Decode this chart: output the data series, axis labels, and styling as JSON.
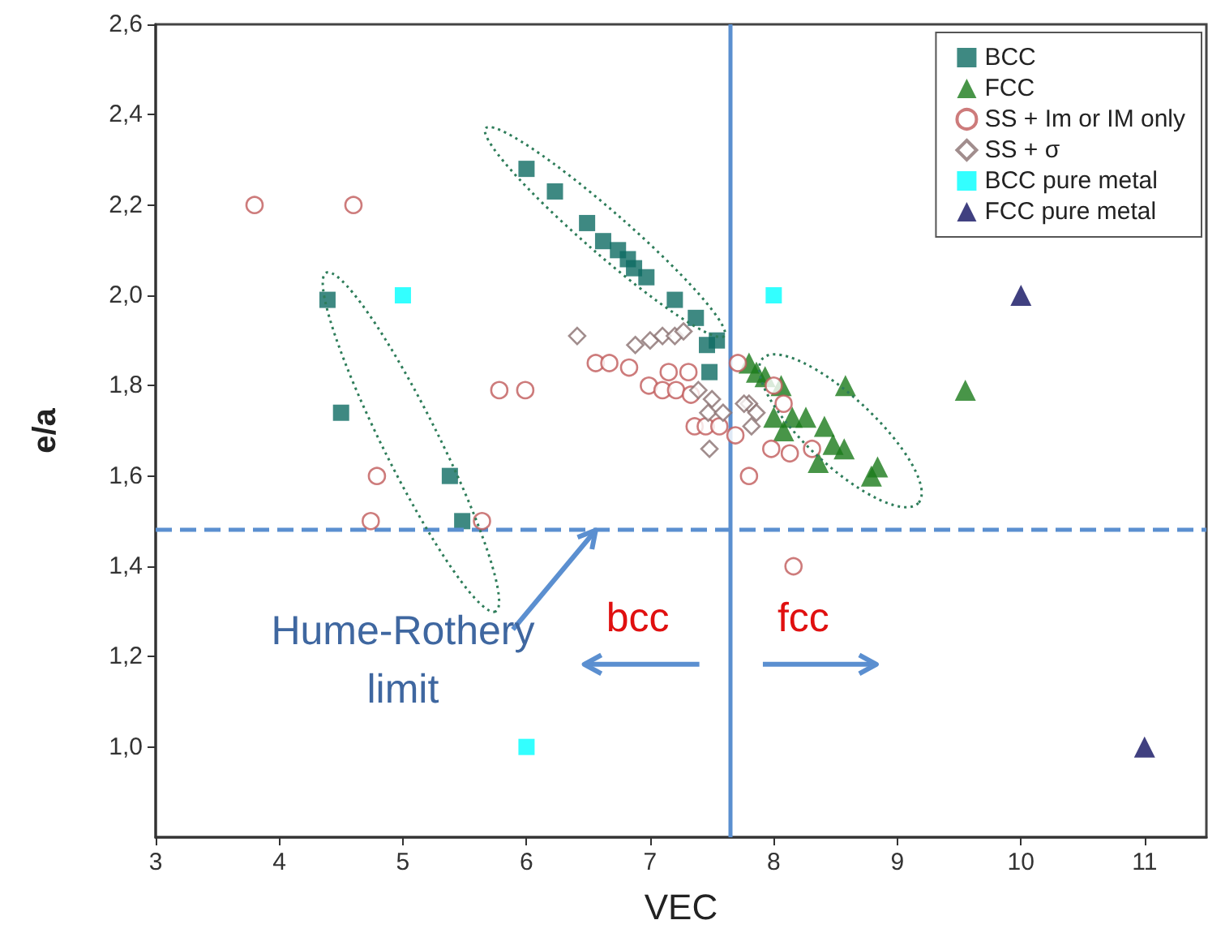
{
  "chart_data": {
    "type": "scatter",
    "xlabel": "VEC",
    "ylabel": "e/a",
    "xlim": [
      3,
      11.5
    ],
    "ylim": [
      0.8,
      2.6
    ],
    "xticks": [
      3,
      4,
      5,
      6,
      7,
      8,
      9,
      10,
      11
    ],
    "yticks": [
      {
        "value": 1.0,
        "label": "1,0"
      },
      {
        "value": 1.2,
        "label": "1,2"
      },
      {
        "value": 1.4,
        "label": "1,4"
      },
      {
        "value": 1.6,
        "label": "1,6"
      },
      {
        "value": 1.8,
        "label": "1,8"
      },
      {
        "value": 2.0,
        "label": "2,0"
      },
      {
        "value": 2.2,
        "label": "2,2"
      },
      {
        "value": 2.4,
        "label": "2,4"
      },
      {
        "value": 2.6,
        "label": "2,6"
      }
    ],
    "grid": false,
    "legend": "top right",
    "series": [
      {
        "name": "BCC",
        "marker": "square",
        "color": "#0e6b63",
        "x": [
          4.39,
          4.5,
          5.38,
          5.48,
          6.0,
          6.23,
          6.49,
          6.62,
          6.74,
          6.82,
          6.87,
          6.97,
          7.2,
          7.37,
          7.46,
          7.54,
          7.48
        ],
        "values": [
          1.99,
          1.74,
          1.6,
          1.5,
          2.28,
          2.23,
          2.16,
          2.12,
          2.1,
          2.08,
          2.06,
          2.04,
          1.99,
          1.95,
          1.89,
          1.9,
          1.83
        ]
      },
      {
        "name": "FCC",
        "marker": "triangle",
        "color": "#1a7a1a",
        "x": [
          7.8,
          7.86,
          7.93,
          8.06,
          8.58,
          8.0,
          8.15,
          8.26,
          8.08,
          8.41,
          8.48,
          8.57,
          8.36,
          8.84,
          8.79,
          9.55
        ],
        "values": [
          1.85,
          1.83,
          1.82,
          1.8,
          1.8,
          1.73,
          1.73,
          1.73,
          1.7,
          1.71,
          1.67,
          1.66,
          1.63,
          1.62,
          1.6,
          1.79
        ]
      },
      {
        "name": "SS + Im or IM only",
        "marker": "circle",
        "color": "#c05a5a",
        "x": [
          3.8,
          4.6,
          4.79,
          4.74,
          5.64,
          5.78,
          5.99,
          6.56,
          6.67,
          6.83,
          6.99,
          7.15,
          7.1,
          7.21,
          7.31,
          7.33,
          7.36,
          7.45,
          7.56,
          7.71,
          7.69,
          7.8,
          8.0,
          7.98,
          8.13,
          8.31,
          8.16,
          8.08
        ],
        "values": [
          2.2,
          2.2,
          1.6,
          1.5,
          1.5,
          1.79,
          1.79,
          1.85,
          1.85,
          1.84,
          1.8,
          1.83,
          1.79,
          1.79,
          1.83,
          1.78,
          1.71,
          1.71,
          1.71,
          1.85,
          1.69,
          1.6,
          1.8,
          1.66,
          1.65,
          1.66,
          1.4,
          1.76
        ]
      },
      {
        "name": "SS + σ",
        "marker": "diamond",
        "color": "#8a7070",
        "x": [
          6.41,
          6.88,
          7.0,
          7.1,
          7.2,
          7.27,
          7.39,
          7.5,
          7.47,
          7.59,
          7.8,
          7.86,
          7.82,
          7.48,
          7.76
        ],
        "values": [
          1.91,
          1.89,
          1.9,
          1.91,
          1.91,
          1.92,
          1.79,
          1.77,
          1.74,
          1.74,
          1.76,
          1.74,
          1.71,
          1.66,
          1.76
        ]
      },
      {
        "name": "BCC pure metal",
        "marker": "square",
        "color": "#00ffff",
        "x": [
          5.0,
          6.0,
          8.0
        ],
        "values": [
          2.0,
          1.0,
          2.0
        ]
      },
      {
        "name": "FCC pure metal",
        "marker": "triangle",
        "color": "#101060",
        "x": [
          10.0,
          11.0
        ],
        "values": [
          2.0,
          1.0
        ]
      }
    ],
    "ref_lines": [
      {
        "axis": "x",
        "value": 7.65,
        "color": "#5b8fd0",
        "line_style": "solid"
      },
      {
        "axis": "y",
        "value": 1.48,
        "label": "Hume-Rothery limit",
        "color": "#5b8fd0",
        "line_style": "dashed"
      }
    ],
    "annotations": [
      "bcc",
      "fcc"
    ]
  }
}
